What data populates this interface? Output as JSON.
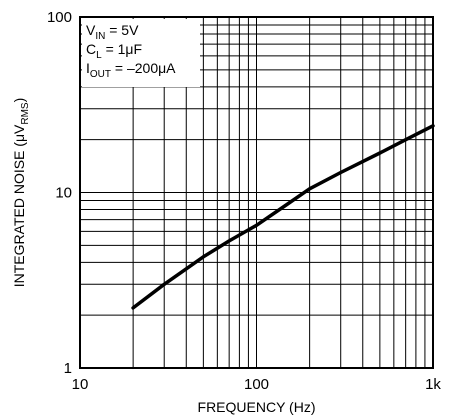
{
  "chart_data": {
    "type": "line",
    "title": "",
    "xlabel": "FREQUENCY (Hz)",
    "ylabel_main": "INTEGRATED NOISE (μV",
    "ylabel_sub": "RMS",
    "ylabel_end": ")",
    "x_scale": "log",
    "y_scale": "log",
    "xlim": [
      10,
      1000
    ],
    "ylim": [
      1,
      100
    ],
    "x_ticks": [
      {
        "value": 10,
        "label": "10"
      },
      {
        "value": 100,
        "label": "100"
      },
      {
        "value": 1000,
        "label": "1k"
      }
    ],
    "y_ticks": [
      {
        "value": 1,
        "label": "1"
      },
      {
        "value": 10,
        "label": "10"
      },
      {
        "value": 100,
        "label": "100"
      }
    ],
    "grid": true,
    "conditions": [
      {
        "main": "V",
        "sub": "IN",
        "rest": " = 5V"
      },
      {
        "main": "C",
        "sub": "L",
        "rest": " = 1μF"
      },
      {
        "main": "I",
        "sub": "OUT",
        "rest": " = –200μA"
      }
    ],
    "legend_placement": "top-left",
    "series": [
      {
        "x": [
          20,
          30,
          50,
          70,
          100,
          150,
          200,
          300,
          500,
          700,
          1000
        ],
        "y": [
          2.2,
          3.0,
          4.3,
          5.3,
          6.5,
          8.6,
          10.5,
          13.0,
          16.8,
          20.0,
          24.0
        ]
      }
    ]
  }
}
